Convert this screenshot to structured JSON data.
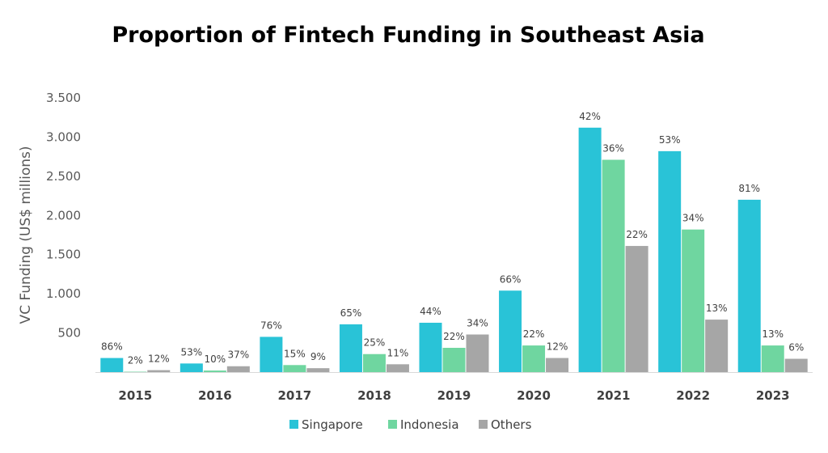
{
  "chart_data": {
    "type": "bar",
    "title": "Proportion of Fintech Funding in Southeast Asia",
    "ylabel": "VC Funding (US$ millions)",
    "xlabel": "",
    "ylim": [
      0,
      3500
    ],
    "yticks": [
      "",
      "500",
      "1.000",
      "1.500",
      "2.000",
      "2.500",
      "3.000",
      "3.500"
    ],
    "categories": [
      "2015",
      "2016",
      "2017",
      "2018",
      "2019",
      "2020",
      "2021",
      "2022",
      "2023"
    ],
    "series": [
      {
        "name": "Singapore",
        "color": "#29c3d7",
        "values": [
          180,
          110,
          450,
          610,
          630,
          1040,
          3120,
          2820,
          2200
        ],
        "labels": [
          "86%",
          "53%",
          "76%",
          "65%",
          "44%",
          "66%",
          "42%",
          "53%",
          "81%"
        ]
      },
      {
        "name": "Indonesia",
        "color": "#6fd6a0",
        "values": [
          5,
          20,
          90,
          230,
          310,
          340,
          2710,
          1820,
          340
        ],
        "labels": [
          "2%",
          "10%",
          "15%",
          "25%",
          "22%",
          "22%",
          "36%",
          "34%",
          "13%"
        ]
      },
      {
        "name": "Others",
        "color": "#a6a6a6",
        "values": [
          25,
          75,
          50,
          100,
          480,
          180,
          1610,
          670,
          170
        ],
        "labels": [
          "12%",
          "37%",
          "9%",
          "11%",
          "34%",
          "12%",
          "22%",
          "13%",
          "6%"
        ]
      }
    ],
    "grid": false,
    "legend_position": "bottom"
  }
}
